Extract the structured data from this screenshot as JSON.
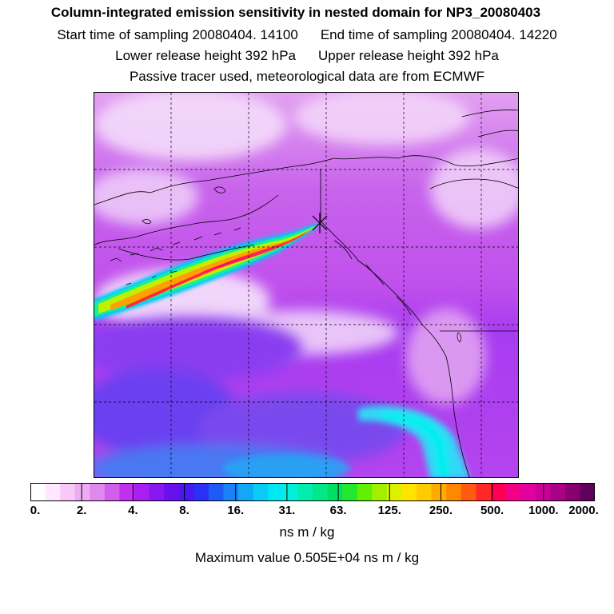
{
  "header": {
    "title": "Column-integrated emission sensitivity in nested domain for NP3_20080403",
    "start_time": "Start time of sampling 20080404. 14100",
    "end_time": "End time of sampling 20080404. 14220",
    "lower_height": "Lower release height  392 hPa",
    "upper_height": "Upper release height  392 hPa",
    "tracer_note": "Passive tracer used, meteorological data are from ECMWF"
  },
  "colorbar": {
    "tick_labels": [
      "0.",
      "2.",
      "4.",
      "8.",
      "16.",
      "31.",
      "63.",
      "125.",
      "250.",
      "500.",
      "1000.",
      "2000."
    ],
    "colors": [
      "#ffffff",
      "#ffe8ff",
      "#f8c8f8",
      "#eeaaf2",
      "#e088ee",
      "#d060ec",
      "#c030ee",
      "#a820f0",
      "#8818f0",
      "#6a10ee",
      "#4a18f0",
      "#2a30f4",
      "#1e5af4",
      "#1a82f6",
      "#12a8f6",
      "#0ccaf8",
      "#00e8f4",
      "#00f0dc",
      "#00eeb0",
      "#00e888",
      "#00e060",
      "#22e830",
      "#60f000",
      "#a0f000",
      "#dcf000",
      "#ffe400",
      "#ffcc00",
      "#ffac00",
      "#ff8800",
      "#ff5a10",
      "#ff2828",
      "#ff0050",
      "#f40088",
      "#e400a0",
      "#cc0098",
      "#aa0088",
      "#880070",
      "#60005a"
    ],
    "units": "ns m / kg"
  },
  "footer": {
    "max_value": "Maximum value  0.505E+04 ns m / kg"
  }
}
